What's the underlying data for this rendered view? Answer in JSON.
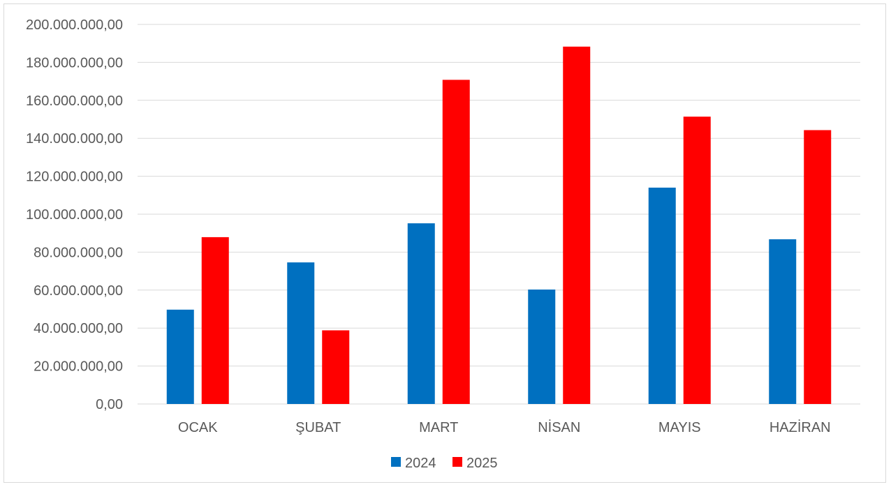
{
  "chart_data": {
    "type": "bar",
    "title": "",
    "xlabel": "",
    "ylabel": "",
    "categories": [
      "OCAK",
      "ŞUBAT",
      "MART",
      "NİSAN",
      "MAYIS",
      "HAZİRAN"
    ],
    "series": [
      {
        "name": "2024",
        "color": "#0070c0",
        "values": [
          49700000,
          74600000,
          95200000,
          60300000,
          114000000,
          86800000
        ]
      },
      {
        "name": "2025",
        "color": "#ff0000",
        "values": [
          87900000,
          38800000,
          170800000,
          188300000,
          151400000,
          144300000
        ]
      }
    ],
    "ylim": [
      0,
      200000000
    ],
    "yticks": [
      0,
      20000000,
      40000000,
      60000000,
      80000000,
      100000000,
      120000000,
      140000000,
      160000000,
      180000000,
      200000000
    ],
    "ytick_labels": [
      "0,00",
      "20.000.000,00",
      "40.000.000,00",
      "60.000.000,00",
      "80.000.000,00",
      "100.000.000,00",
      "120.000.000,00",
      "140.000.000,00",
      "160.000.000,00",
      "180.000.000,00",
      "200.000.000,00"
    ],
    "grid": true,
    "legend": "bottom"
  }
}
